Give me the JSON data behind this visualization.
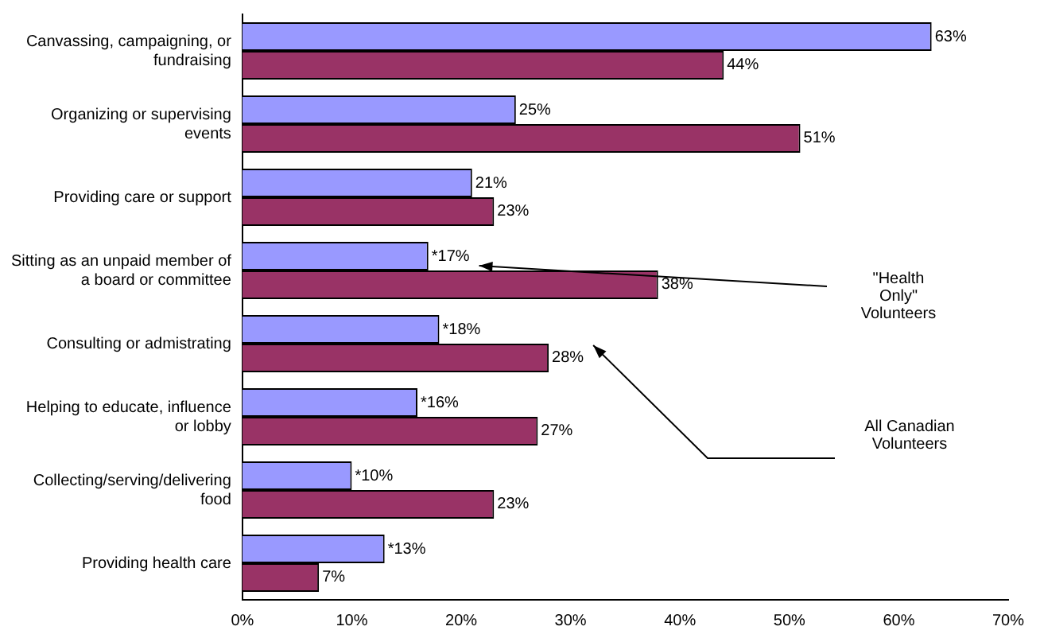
{
  "chart_data": {
    "type": "bar",
    "orientation": "horizontal",
    "categories": [
      "Canvassing, campaigning, or fundraising",
      "Organizing or supervising events",
      "Providing care or support",
      "Sitting as an unpaid member of a board or committee",
      "Consulting or admistrating",
      "Helping to educate, influence or lobby",
      "Collecting/serving/delivering food",
      "Providing health care"
    ],
    "series": [
      {
        "name": "\"Health Only\" Volunteers",
        "color": "#9999ff",
        "values": [
          63,
          25,
          21,
          17,
          18,
          16,
          10,
          13
        ],
        "value_labels": [
          "63%",
          "25%",
          "21%",
          "*17%",
          "*18%",
          "*16%",
          "*10%",
          "*13%"
        ]
      },
      {
        "name": "All Canadian Volunteers",
        "color": "#993366",
        "values": [
          44,
          51,
          23,
          38,
          28,
          27,
          23,
          7
        ],
        "value_labels": [
          "44%",
          "51%",
          "23%",
          "38%",
          "28%",
          "27%",
          "23%",
          "7%"
        ]
      }
    ],
    "xlim": [
      0,
      70
    ],
    "xticks": [
      {
        "value": 0,
        "label": "0%"
      },
      {
        "value": 10,
        "label": "10%"
      },
      {
        "value": 20,
        "label": "20%"
      },
      {
        "value": 30,
        "label": "30%"
      },
      {
        "value": 40,
        "label": "40%"
      },
      {
        "value": 50,
        "label": "50%"
      },
      {
        "value": 60,
        "label": "60%"
      },
      {
        "value": 70,
        "label": "70%"
      }
    ],
    "grid": false,
    "legend": false
  }
}
